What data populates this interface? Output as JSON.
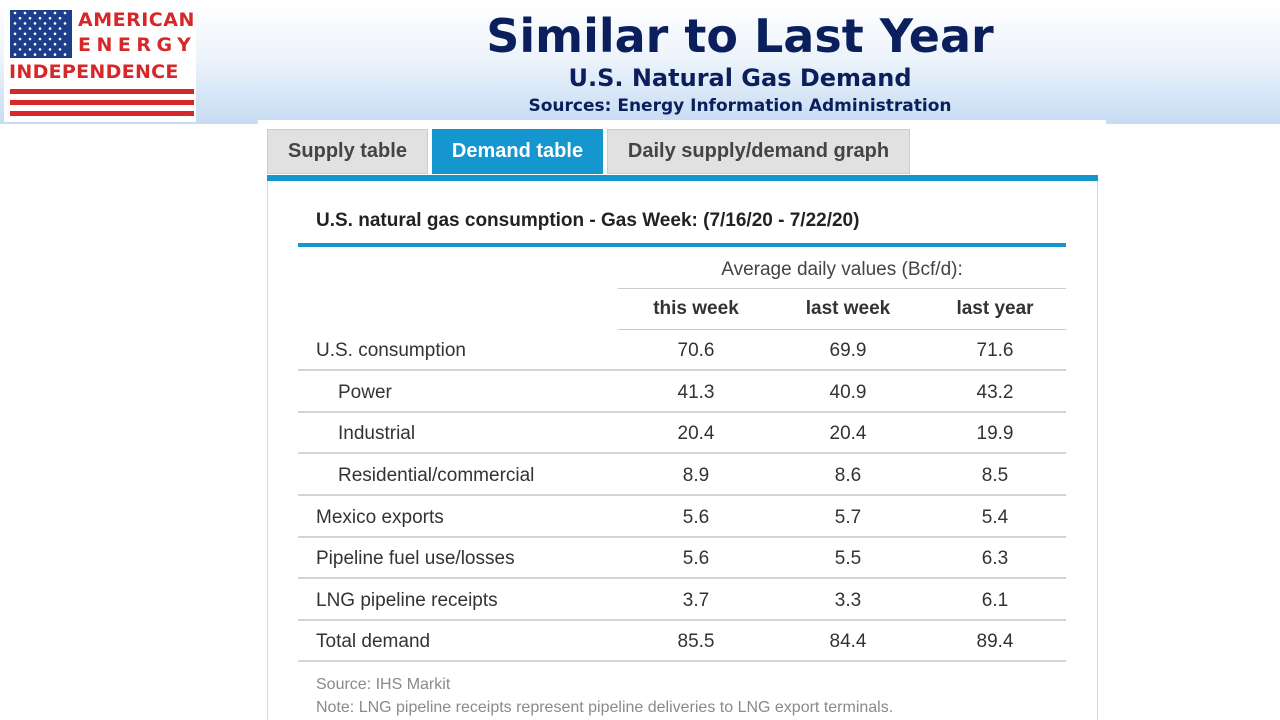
{
  "logo": {
    "line1": "AMERICAN",
    "line2": "ENERGY",
    "line3": "INDEPENDENCE",
    "colors": {
      "red": "#d62828",
      "blue": "#1d3e8a"
    }
  },
  "header": {
    "title": "Similar to Last Year",
    "subtitle": "U.S. Natural Gas Demand",
    "sources": "Sources: Energy Information Administration"
  },
  "tabs": [
    {
      "label": "Supply table",
      "active": false
    },
    {
      "label": "Demand table",
      "active": true
    },
    {
      "label": "Daily supply/demand graph",
      "active": false
    }
  ],
  "table": {
    "caption": "U.S. natural gas consumption - Gas Week: (7/16/20 - 7/22/20)",
    "group_header": "Average daily values (Bcf/d):",
    "columns": [
      "this week",
      "last week",
      "last year"
    ],
    "rows": [
      {
        "label": "U.S. consumption",
        "indent": false,
        "values": [
          "70.6",
          "69.9",
          "71.6"
        ]
      },
      {
        "label": "Power",
        "indent": true,
        "values": [
          "41.3",
          "40.9",
          "43.2"
        ]
      },
      {
        "label": "Industrial",
        "indent": true,
        "values": [
          "20.4",
          "20.4",
          "19.9"
        ]
      },
      {
        "label": "Residential/commercial",
        "indent": true,
        "values": [
          "8.9",
          "8.6",
          "8.5"
        ]
      },
      {
        "label": "Mexico exports",
        "indent": false,
        "values": [
          "5.6",
          "5.7",
          "5.4"
        ]
      },
      {
        "label": "Pipeline fuel use/losses",
        "indent": false,
        "values": [
          "5.6",
          "5.5",
          "6.3"
        ]
      },
      {
        "label": "LNG pipeline receipts",
        "indent": false,
        "values": [
          "3.7",
          "3.3",
          "6.1"
        ]
      },
      {
        "label": "Total demand",
        "indent": false,
        "values": [
          "85.5",
          "84.4",
          "89.4"
        ]
      }
    ],
    "source": "Source: IHS Markit",
    "note": "Note: LNG pipeline receipts represent pipeline deliveries to LNG export terminals."
  },
  "colors": {
    "accent": "#1696cf",
    "title": "#0a1f5c",
    "tab_inactive": "#e1e1e1"
  }
}
